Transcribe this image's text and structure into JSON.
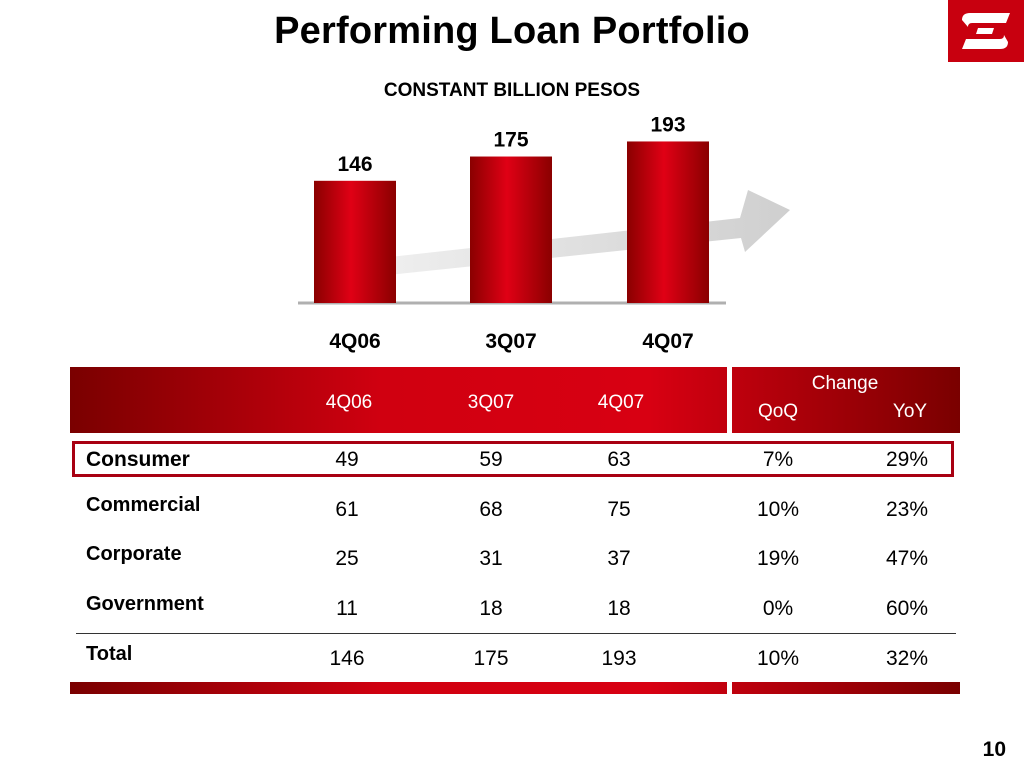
{
  "title": "Performing Loan Portfolio",
  "subtitle": "CONSTANT BILLION PESOS",
  "page_number": "10",
  "colors": {
    "brand_red": "#c8000f",
    "dark_red": "#7a0000",
    "arrow_gray": "#d9d9d9"
  },
  "logo": {
    "icon": "bank-logo-icon"
  },
  "chart_data": {
    "type": "bar",
    "categories": [
      "4Q06",
      "3Q07",
      "4Q07"
    ],
    "values": [
      146,
      175,
      193
    ],
    "value_labels": [
      "146",
      "175",
      "193"
    ],
    "title": "",
    "xlabel": "",
    "ylabel": "",
    "ylim": [
      0,
      200
    ],
    "trend_arrow": true
  },
  "table": {
    "header": {
      "columns": [
        "4Q06",
        "3Q07",
        "4Q07"
      ],
      "change_label": "Change",
      "qoq_label": "QoQ",
      "yoy_label": "YoY"
    },
    "rows": [
      {
        "label": "Consumer",
        "values": [
          "49",
          "59",
          "63"
        ],
        "qoq": "7%",
        "yoy": "29%",
        "highlighted": true
      },
      {
        "label": "Commercial",
        "values": [
          "61",
          "68",
          "75"
        ],
        "qoq": "10%",
        "yoy": "23%"
      },
      {
        "label": "Corporate",
        "values": [
          "25",
          "31",
          "37"
        ],
        "qoq": "19%",
        "yoy": "47%"
      },
      {
        "label": "Government",
        "values": [
          "11",
          "18",
          "18"
        ],
        "qoq": "0%",
        "yoy": "60%"
      },
      {
        "label": "Total",
        "values": [
          "146",
          "175",
          "193"
        ],
        "qoq": "10%",
        "yoy": "32%"
      }
    ]
  }
}
